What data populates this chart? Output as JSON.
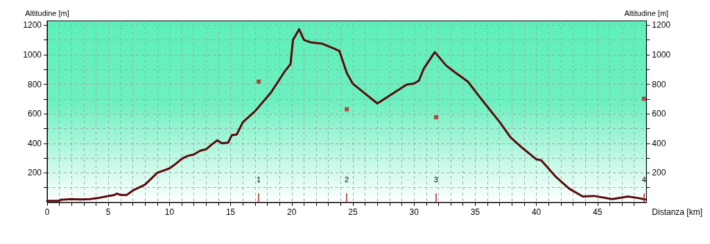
{
  "chart_data": {
    "type": "line",
    "xlabel": "Distanza [km]",
    "ylabel": "Altitudine [m]",
    "y2label": "Altitudine [m]",
    "xlim": [
      0,
      49
    ],
    "ylim": [
      0,
      1230
    ],
    "y2lim": [
      0,
      1230
    ],
    "xticks": [
      0,
      {
        "value": 1,
        "label": null
      },
      {
        "value": 2,
        "label": null
      },
      {
        "value": 3,
        "label": null
      },
      {
        "value": 4,
        "label": null
      },
      5,
      {
        "value": 6,
        "label": null
      },
      {
        "value": 7,
        "label": null
      },
      {
        "value": 8,
        "label": null
      },
      {
        "value": 9,
        "label": null
      },
      10,
      {
        "value": 11,
        "label": null
      },
      {
        "value": 12,
        "label": null
      },
      {
        "value": 13,
        "label": null
      },
      {
        "value": 14,
        "label": null
      },
      15,
      {
        "value": 16,
        "label": null
      },
      {
        "value": 17,
        "label": null
      },
      {
        "value": 18,
        "label": null
      },
      {
        "value": 19,
        "label": null
      },
      20,
      {
        "value": 21,
        "label": null
      },
      {
        "value": 22,
        "label": null
      },
      {
        "value": 23,
        "label": null
      },
      {
        "value": 24,
        "label": null
      },
      25,
      {
        "value": 26,
        "label": null
      },
      {
        "value": 27,
        "label": null
      },
      {
        "value": 28,
        "label": null
      },
      {
        "value": 29,
        "label": null
      },
      30,
      {
        "value": 31,
        "label": null
      },
      {
        "value": 32,
        "label": null
      },
      {
        "value": 33,
        "label": null
      },
      {
        "value": 34,
        "label": null
      },
      35,
      {
        "value": 36,
        "label": null
      },
      {
        "value": 37,
        "label": null
      },
      {
        "value": 38,
        "label": null
      },
      {
        "value": 39,
        "label": null
      },
      40,
      {
        "value": 41,
        "label": null
      },
      {
        "value": 42,
        "label": null
      },
      {
        "value": 43,
        "label": null
      },
      {
        "value": 44,
        "label": null
      },
      45,
      {
        "value": 46,
        "label": null
      },
      {
        "value": 47,
        "label": null
      },
      {
        "value": 48,
        "label": null
      }
    ],
    "yticks": [
      {
        "value": 100,
        "label": null
      },
      200,
      {
        "value": 300,
        "label": null
      },
      400,
      {
        "value": 500,
        "label": null
      },
      600,
      {
        "value": 700,
        "label": null
      },
      800,
      {
        "value": 900,
        "label": null
      },
      1000,
      {
        "value": 1100,
        "label": null
      },
      1200
    ],
    "y2ticks": [
      {
        "value": 100,
        "label": null
      },
      200,
      {
        "value": 300,
        "label": null
      },
      400,
      {
        "value": 500,
        "label": null
      },
      600,
      {
        "value": 700,
        "label": null
      },
      800,
      {
        "value": 900,
        "label": null
      },
      1000,
      {
        "value": 1100,
        "label": null
      },
      1200
    ],
    "grid": true,
    "series": [
      {
        "color": "#5a0a0a",
        "marker": "none",
        "line_style": "solid",
        "x": [
          0,
          1,
          1.1,
          2,
          2.7,
          3.5,
          4.2,
          4.8,
          5.5,
          5.7,
          6,
          6.5,
          7,
          8,
          8.5,
          9,
          9.5,
          10,
          10.5,
          11,
          11.5,
          12,
          12.5,
          13,
          13.5,
          13.9,
          14.3,
          14.8,
          15.1,
          15.5,
          16,
          17,
          18.3,
          19.4,
          19.9,
          20.1,
          20.6,
          21,
          21.5,
          22.5,
          23.5,
          23.9,
          24.5,
          25,
          27,
          29.4,
          30,
          30.4,
          30.8,
          31.7,
          32.6,
          33.3,
          34.4,
          35.3,
          36,
          37,
          37.9,
          38.9,
          40,
          40.4,
          41.6,
          42.7,
          43.8,
          44.7,
          46.2,
          47.5,
          48.3,
          48.9
        ],
        "values": [
          10,
          10,
          18,
          22,
          20,
          22,
          30,
          40,
          50,
          60,
          50,
          50,
          80,
          120,
          160,
          200,
          215,
          230,
          260,
          295,
          315,
          325,
          350,
          360,
          395,
          420,
          400,
          405,
          455,
          460,
          543,
          618,
          744,
          884,
          937,
          1100,
          1173,
          1100,
          1085,
          1075,
          1040,
          1025,
          877,
          803,
          670,
          798,
          805,
          825,
          907,
          1018,
          929,
          884,
          818,
          721,
          648,
          544,
          440,
          366,
          292,
          285,
          173,
          92,
          40,
          44,
          22,
          40,
          30,
          20
        ]
      },
      {
        "type": "scatter",
        "color": "#b22222",
        "marker": "square",
        "x": [
          17.3,
          24.5,
          31.8,
          48.8
        ],
        "values": [
          818,
          631,
          577,
          702
        ]
      }
    ],
    "annotations": [
      "1",
      "2",
      "3",
      "4"
    ]
  }
}
